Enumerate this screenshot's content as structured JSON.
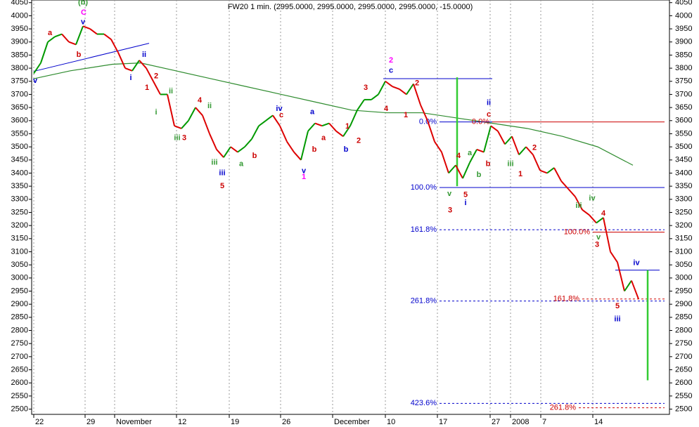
{
  "chart_data": {
    "type": "line",
    "title": "FW20 1 min. (2995.0000, 2995.0000, 2995.0000, 2995.0000, -15.0000)",
    "x": [
      0,
      1,
      2,
      3,
      4,
      5,
      6,
      7,
      8,
      9,
      10,
      11,
      12,
      13,
      14,
      15,
      16,
      17,
      18,
      19,
      20,
      21,
      22,
      23,
      24,
      25,
      26,
      27,
      28,
      29,
      30,
      31,
      32,
      33,
      34,
      35,
      36,
      37,
      38,
      39,
      40,
      41,
      42,
      43,
      44,
      45,
      46,
      47,
      48,
      49,
      50,
      51,
      52,
      53,
      54,
      55,
      56,
      57,
      58,
      59,
      60,
      61,
      62,
      63,
      64,
      65,
      66,
      67,
      68,
      69,
      70,
      71,
      72,
      73,
      74,
      75,
      76,
      77,
      78,
      79,
      80,
      81,
      82,
      83,
      84,
      85,
      86
    ],
    "series": [
      {
        "up_color": "#009900",
        "down_color": "#dd0000",
        "values": [
          3780,
          3820,
          3900,
          3920,
          3930,
          3900,
          3890,
          3960,
          3950,
          3930,
          3930,
          3910,
          3860,
          3800,
          3790,
          3830,
          3800,
          3750,
          3700,
          3700,
          3580,
          3570,
          3600,
          3650,
          3620,
          3550,
          3490,
          3460,
          3500,
          3480,
          3500,
          3530,
          3580,
          3600,
          3620,
          3580,
          3520,
          3480,
          3450,
          3560,
          3590,
          3580,
          3590,
          3560,
          3540,
          3580,
          3640,
          3680,
          3680,
          3700,
          3750,
          3730,
          3720,
          3700,
          3740,
          3660,
          3600,
          3520,
          3480,
          3400,
          3430,
          3380,
          3440,
          3490,
          3480,
          3580,
          3560,
          3510,
          3540,
          3470,
          3500,
          3470,
          3410,
          3400,
          3420,
          3370,
          3340,
          3310,
          3260,
          3240,
          3210,
          3230,
          3100,
          3060,
          2950,
          2990,
          2920
        ]
      }
    ],
    "moving_average": {
      "color": "#2e8b2e",
      "x": [
        0,
        5.2,
        11.2,
        15.2,
        20.2,
        25.2,
        30.2,
        35.2,
        40.2,
        45.2,
        50.2,
        55.2,
        60.2,
        65.2,
        70.2,
        75.2,
        80.2,
        85.2
      ],
      "values": [
        3760,
        3790,
        3815,
        3820,
        3790,
        3760,
        3730,
        3700,
        3670,
        3640,
        3630,
        3630,
        3610,
        3590,
        3570,
        3540,
        3500,
        3430
      ]
    },
    "xlim": [
      -0.3,
      90.4
    ],
    "ylim": [
      2480,
      4060
    ],
    "xticks": [
      {
        "value": 0,
        "label": "22"
      },
      {
        "value": 7.3,
        "label": "29"
      },
      {
        "value": 11.5,
        "label": "November"
      },
      {
        "value": 20.3,
        "label": "12"
      },
      {
        "value": 27.8,
        "label": "19"
      },
      {
        "value": 35.1,
        "label": "26"
      },
      {
        "value": 42.5,
        "label": "December"
      },
      {
        "value": 50,
        "label": "10"
      },
      {
        "value": 57.4,
        "label": "17"
      },
      {
        "value": 64.9,
        "label": "27"
      },
      {
        "value": 67.8,
        "label": "2008"
      },
      {
        "value": 72.1,
        "label": "7"
      },
      {
        "value": 79.5,
        "label": "14"
      }
    ],
    "yticks": [
      2500,
      2550,
      2600,
      2650,
      2700,
      2750,
      2800,
      2850,
      2900,
      2950,
      3000,
      3050,
      3100,
      3150,
      3200,
      3250,
      3300,
      3350,
      3400,
      3450,
      3500,
      3550,
      3600,
      3650,
      3700,
      3750,
      3800,
      3850,
      3900,
      3950,
      4000,
      4050
    ],
    "grid": true,
    "levels": [
      {
        "price": 3760,
        "x_start": 49.7,
        "x_end": 65.2,
        "color": "#0000cc",
        "dashed": false
      },
      {
        "price": 3595,
        "x_start": 57.7,
        "x_end": 65.2,
        "color": "#0000cc",
        "dashed": false,
        "label": "0.0%"
      },
      {
        "price": 3595,
        "x_start": 65.2,
        "x_end": 89.7,
        "color": "#cc0000",
        "dashed": false,
        "label": "0.0%"
      },
      {
        "price": 3345,
        "x_start": 57.7,
        "x_end": 89.7,
        "color": "#0000cc",
        "dashed": false,
        "label": "100.0%"
      },
      {
        "price": 3184,
        "x_start": 57.7,
        "x_end": 89.7,
        "color": "#0000cc",
        "dashed": true,
        "label": "161.8%"
      },
      {
        "price": 3175,
        "x_start": 79.5,
        "x_end": 89.7,
        "color": "#cc0000",
        "dashed": false,
        "label": "100.0%"
      },
      {
        "price": 3030,
        "x_start": 82.7,
        "x_end": 89,
        "color": "#0000cc",
        "dashed": false
      },
      {
        "price": 2912,
        "x_start": 57.7,
        "x_end": 89.7,
        "color": "#0000cc",
        "dashed": true,
        "label": "261.8%"
      },
      {
        "price": 2920,
        "x_start": 78,
        "x_end": 89.7,
        "color": "#cc0000",
        "dashed": true,
        "label": "161.8%"
      },
      {
        "price": 2522,
        "x_start": 57.7,
        "x_end": 89.7,
        "color": "#0000cc",
        "dashed": true,
        "label": "423.6%"
      },
      {
        "price": 2505,
        "x_start": 77.5,
        "x_end": 89.7,
        "color": "#cc0000",
        "dashed": true,
        "label": "261.8%"
      }
    ],
    "verticals": [
      {
        "x": 60.2,
        "from": 3765,
        "to": 3350,
        "color": "#33cc33"
      },
      {
        "x": 87.3,
        "from": 3030,
        "to": 2610,
        "color": "#33cc33"
      }
    ],
    "trendline": {
      "x": [
        0,
        16.4
      ],
      "values": [
        3788,
        3895
      ],
      "color": "#0000cc"
    },
    "annotations": [
      {
        "text": "(b)",
        "x": 7,
        "y": 4050,
        "color": "#339933"
      },
      {
        "text": "C",
        "x": 7.1,
        "y": 4011,
        "color": "#ff00ff"
      },
      {
        "text": "v",
        "x": 7,
        "y": 3975,
        "color": "#0000cc"
      },
      {
        "text": "a",
        "x": 2.3,
        "y": 3934,
        "color": "#cc0000"
      },
      {
        "text": "b",
        "x": 6.4,
        "y": 3851,
        "color": "#cc0000"
      },
      {
        "text": "v",
        "x": 0.2,
        "y": 3752,
        "color": "#0000cc"
      },
      {
        "text": "ii",
        "x": 15.7,
        "y": 3851,
        "color": "#0000cc"
      },
      {
        "text": "i",
        "x": 13.8,
        "y": 3763,
        "color": "#0000cc"
      },
      {
        "text": "1",
        "x": 16.1,
        "y": 3725,
        "color": "#cc0000"
      },
      {
        "text": "2",
        "x": 17.4,
        "y": 3769,
        "color": "#cc0000"
      },
      {
        "text": "ii",
        "x": 19.5,
        "y": 3711,
        "color": "#339933"
      },
      {
        "text": "i",
        "x": 17.4,
        "y": 3631,
        "color": "#339933"
      },
      {
        "text": "iii",
        "x": 20.4,
        "y": 3534,
        "color": "#339933"
      },
      {
        "text": "3",
        "x": 21.4,
        "y": 3534,
        "color": "#cc0000"
      },
      {
        "text": "4",
        "x": 23.6,
        "y": 3677,
        "color": "#cc0000"
      },
      {
        "text": "ii",
        "x": 25,
        "y": 3655,
        "color": "#339933"
      },
      {
        "text": "iii",
        "x": 25.7,
        "y": 3440,
        "color": "#339933"
      },
      {
        "text": "5",
        "x": 26.8,
        "y": 3350,
        "color": "#cc0000"
      },
      {
        "text": "iii",
        "x": 26.8,
        "y": 3399,
        "color": "#0000cc"
      },
      {
        "text": "a",
        "x": 29.5,
        "y": 3435,
        "color": "#339933"
      },
      {
        "text": "b",
        "x": 31.4,
        "y": 3465,
        "color": "#cc0000"
      },
      {
        "text": "iv",
        "x": 34.9,
        "y": 3645,
        "color": "#0000cc"
      },
      {
        "text": "c",
        "x": 35.2,
        "y": 3620,
        "color": "#cc0000"
      },
      {
        "text": "v",
        "x": 38.4,
        "y": 3407,
        "color": "#0000cc"
      },
      {
        "text": "1",
        "x": 38.4,
        "y": 3385,
        "color": "#ff00ff"
      },
      {
        "text": "a",
        "x": 39.6,
        "y": 3633,
        "color": "#0000cc"
      },
      {
        "text": "a",
        "x": 41.2,
        "y": 3534,
        "color": "#cc0000"
      },
      {
        "text": "b",
        "x": 39.9,
        "y": 3490,
        "color": "#cc0000"
      },
      {
        "text": "b",
        "x": 44.4,
        "y": 3490,
        "color": "#0000cc"
      },
      {
        "text": "1",
        "x": 44.6,
        "y": 3578,
        "color": "#cc0000"
      },
      {
        "text": "2",
        "x": 46.2,
        "y": 3523,
        "color": "#cc0000"
      },
      {
        "text": "3",
        "x": 47.2,
        "y": 3725,
        "color": "#cc0000"
      },
      {
        "text": "4",
        "x": 50.1,
        "y": 3645,
        "color": "#cc0000"
      },
      {
        "text": "2",
        "x": 50.8,
        "y": 3829,
        "color": "#ff00ff"
      },
      {
        "text": "c",
        "x": 50.8,
        "y": 3791,
        "color": "#0000cc"
      },
      {
        "text": "2",
        "x": 54.5,
        "y": 3742,
        "color": "#cc0000"
      },
      {
        "text": "1",
        "x": 52.9,
        "y": 3620,
        "color": "#cc0000"
      },
      {
        "text": "ii",
        "x": 64.7,
        "y": 3667,
        "color": "#0000cc"
      },
      {
        "text": "c",
        "x": 64.7,
        "y": 3623,
        "color": "#cc0000"
      },
      {
        "text": "i",
        "x": 61.4,
        "y": 3286,
        "color": "#0000cc"
      },
      {
        "text": "5",
        "x": 61.4,
        "y": 3316,
        "color": "#cc0000"
      },
      {
        "text": "3",
        "x": 59.2,
        "y": 3258,
        "color": "#cc0000"
      },
      {
        "text": "v",
        "x": 59.1,
        "y": 3320,
        "color": "#339933"
      },
      {
        "text": "4",
        "x": 60.4,
        "y": 3465,
        "color": "#cc0000"
      },
      {
        "text": "a",
        "x": 62,
        "y": 3476,
        "color": "#339933"
      },
      {
        "text": "b",
        "x": 63.3,
        "y": 3393,
        "color": "#339933"
      },
      {
        "text": "b",
        "x": 64.6,
        "y": 3435,
        "color": "#cc0000"
      },
      {
        "text": "2",
        "x": 71.2,
        "y": 3496,
        "color": "#cc0000"
      },
      {
        "text": "1",
        "x": 69.2,
        "y": 3396,
        "color": "#cc0000"
      },
      {
        "text": "iii",
        "x": 67.8,
        "y": 3435,
        "color": "#339933"
      },
      {
        "text": "iv",
        "x": 79.4,
        "y": 3303,
        "color": "#339933"
      },
      {
        "text": "4",
        "x": 81,
        "y": 3245,
        "color": "#cc0000"
      },
      {
        "text": "iii",
        "x": 77.5,
        "y": 3275,
        "color": "#339933"
      },
      {
        "text": "v",
        "x": 80.3,
        "y": 3154,
        "color": "#339933"
      },
      {
        "text": "3",
        "x": 80.1,
        "y": 3126,
        "color": "#cc0000"
      },
      {
        "text": "iv",
        "x": 85.7,
        "y": 3057,
        "color": "#0000cc"
      },
      {
        "text": "5",
        "x": 83,
        "y": 2892,
        "color": "#cc0000"
      },
      {
        "text": "iii",
        "x": 83,
        "y": 2842,
        "color": "#0000cc"
      }
    ]
  }
}
